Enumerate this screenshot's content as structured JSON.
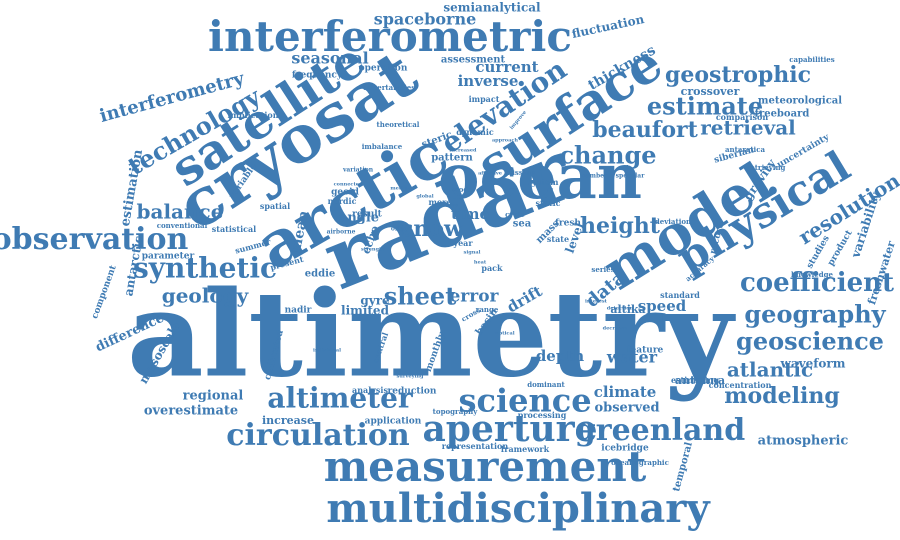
{
  "colors": {
    "word": "#3f7bb3",
    "background": "#ffffff"
  },
  "words": [
    "altimetry",
    "radar",
    "ocean",
    "arctic",
    "cryosat",
    "surface",
    "satellite",
    "model",
    "measurement",
    "multidisciplinary",
    "interferometric",
    "physical",
    "science",
    "aperture",
    "circulation",
    "altimeter",
    "observation",
    "elevation",
    "change",
    "greenland",
    "geoscience",
    "coefficient",
    "geography",
    "synthetic",
    "sheet",
    "snow",
    "height",
    "technology",
    "geostrophic",
    "estimate",
    "beaufort",
    "retrieval",
    "resolution",
    "modeling",
    "atlantic",
    "balance",
    "geology",
    "interferometry",
    "seasonal",
    "spaceborne",
    "current",
    "inverse",
    "thickness",
    "data",
    "error",
    "drift",
    "water",
    "speed",
    "depth",
    "climate",
    "observed",
    "overestimate",
    "regional",
    "difference",
    "mesoscale",
    "antarctic",
    "estimation",
    "time",
    "angle",
    "mean",
    "gravity",
    "variability",
    "freshwater",
    "waveform",
    "atmospheric",
    "crossover",
    "semianalytical",
    "fluctuation",
    "meteorological",
    "freeboard",
    "uncertainty",
    "product",
    "studies",
    "record",
    "antenna",
    "limited",
    "gyre",
    "increase",
    "application",
    "temporal",
    "icebridge",
    "framework",
    "representation",
    "concentration",
    "estimating",
    "standard",
    "altika",
    "feature",
    "eddie",
    "nadir",
    "parameter",
    "component",
    "statistical",
    "variable",
    "summer",
    "spatial",
    "implication",
    "assessment",
    "operation",
    "frequency",
    "uncertainties",
    "impact",
    "comparison",
    "siberian",
    "retrieving",
    "capabilities",
    "knowledge",
    "accuracy",
    "deviation",
    "antarctica",
    "level",
    "sea",
    "mass",
    "state",
    "fresh",
    "pack",
    "system",
    "mission",
    "cycle",
    "static",
    "mode",
    "geoid",
    "nordic",
    "result",
    "more",
    "echo",
    "central",
    "monthly",
    "basin",
    "range",
    "cross",
    "dynamic",
    "pattern",
    "steric",
    "imbalance",
    "theoretical",
    "calibrated",
    "analysis",
    "reduction",
    "topography",
    "oceanographic",
    "processing",
    "dominant",
    "conventional",
    "present",
    "year",
    "series",
    "number",
    "specular",
    "affective",
    "airborne",
    "variation",
    "individual",
    "strength",
    "origin",
    "connected",
    "method",
    "global",
    "approach",
    "increased",
    "heat",
    "signal",
    "detection",
    "interest",
    "improve",
    "decrease",
    "optical",
    "surveying",
    "rise"
  ]
}
